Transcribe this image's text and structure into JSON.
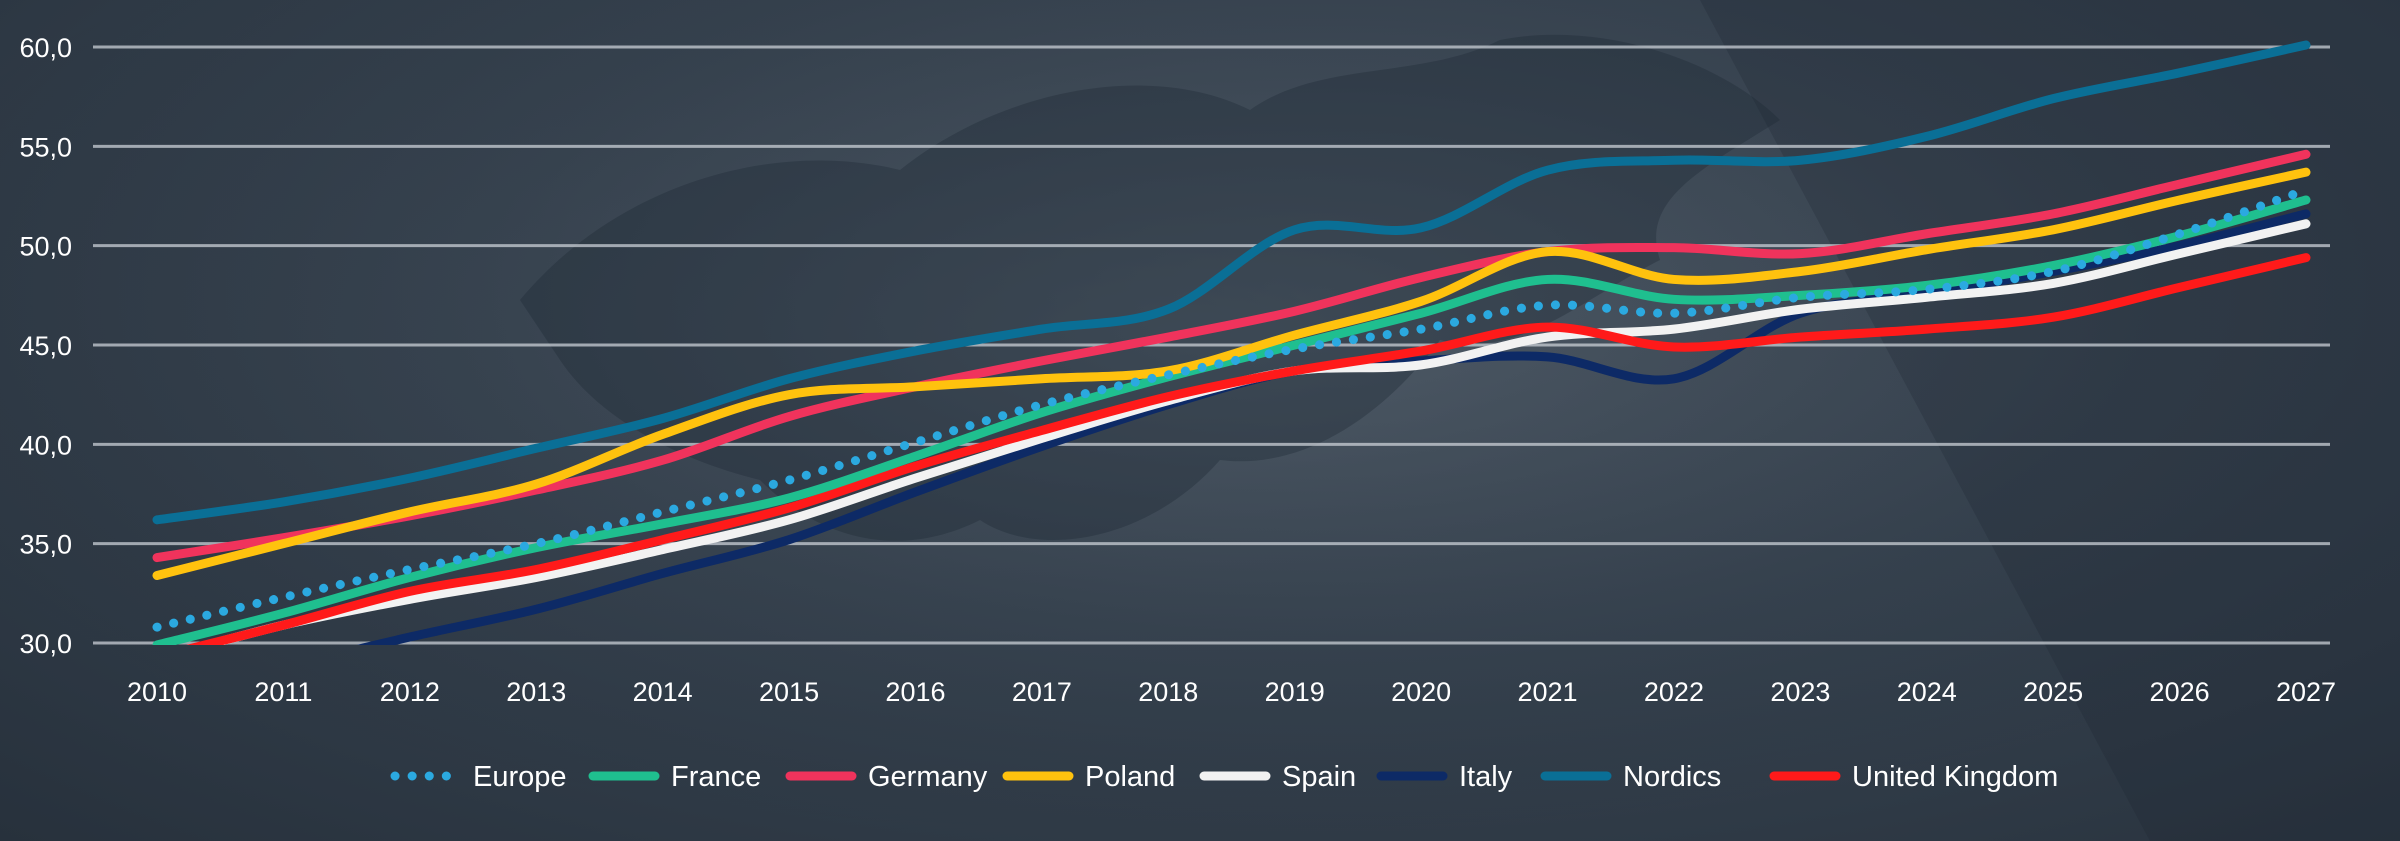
{
  "chart_data": {
    "type": "line",
    "title": "",
    "xlabel": "",
    "ylabel": "",
    "x": [
      "2010",
      "2011",
      "2012",
      "2013",
      "2014",
      "2015",
      "2016",
      "2017",
      "2018",
      "2019",
      "2020",
      "2021",
      "2022",
      "2023",
      "2024",
      "2025",
      "2026",
      "2027"
    ],
    "y_ticks": [
      "30,0",
      "35,0",
      "40,0",
      "45,0",
      "50,0",
      "55,0",
      "60,0"
    ],
    "ylim": [
      30,
      60
    ],
    "grid": true,
    "legend_position": "bottom",
    "series": [
      {
        "name": "Europe",
        "color": "#2ba9e0",
        "style": "dotted",
        "values": [
          30.8,
          32.3,
          33.7,
          35.0,
          36.6,
          38.2,
          40.1,
          42.0,
          43.5,
          44.8,
          45.8,
          47.0,
          46.6,
          47.4,
          47.8,
          48.7,
          50.6,
          52.8
        ]
      },
      {
        "name": "France",
        "color": "#1fbf8f",
        "style": "solid",
        "values": [
          29.9,
          31.5,
          33.3,
          34.8,
          36.0,
          37.3,
          39.4,
          41.6,
          43.4,
          45.0,
          46.6,
          48.3,
          47.3,
          47.5,
          48.0,
          49.0,
          50.5,
          52.3
        ]
      },
      {
        "name": "Germany",
        "color": "#f0335c",
        "style": "solid",
        "values": [
          34.3,
          35.3,
          36.4,
          37.7,
          39.2,
          41.4,
          42.9,
          44.2,
          45.4,
          46.7,
          48.4,
          49.7,
          49.9,
          49.6,
          50.6,
          51.6,
          53.1,
          54.6
        ]
      },
      {
        "name": "Poland",
        "color": "#ffc20e",
        "style": "solid",
        "values": [
          33.4,
          35.0,
          36.6,
          38.0,
          40.5,
          42.5,
          42.9,
          43.3,
          43.7,
          45.5,
          47.2,
          49.7,
          48.3,
          48.7,
          49.8,
          50.8,
          52.3,
          53.7
        ]
      },
      {
        "name": "Spain",
        "color": "#f2f2f2",
        "style": "solid",
        "values": [
          29.2,
          30.9,
          32.2,
          33.3,
          34.7,
          36.2,
          38.3,
          40.3,
          42.2,
          43.7,
          44.0,
          45.4,
          45.8,
          46.8,
          47.4,
          48.1,
          49.6,
          51.1
        ]
      },
      {
        "name": "Italy",
        "color": "#0d2a66",
        "style": "solid",
        "values": [
          27.5,
          28.8,
          30.3,
          31.7,
          33.5,
          35.2,
          37.6,
          39.9,
          42.0,
          43.7,
          44.2,
          44.4,
          43.3,
          46.6,
          47.6,
          48.7,
          50.0,
          51.6
        ]
      },
      {
        "name": "Nordics",
        "color": "#0a6f96",
        "style": "solid",
        "values": [
          36.2,
          37.1,
          38.3,
          39.8,
          41.3,
          43.3,
          44.7,
          45.8,
          46.8,
          50.8,
          50.9,
          53.8,
          54.3,
          54.3,
          55.5,
          57.4,
          58.7,
          60.1
        ]
      },
      {
        "name": "United Kingdom",
        "color": "#ff1a1a",
        "style": "solid",
        "values": [
          29.3,
          30.9,
          32.6,
          33.7,
          35.2,
          36.8,
          38.9,
          40.7,
          42.4,
          43.7,
          44.7,
          45.9,
          44.9,
          45.4,
          45.8,
          46.4,
          47.9,
          49.4
        ]
      }
    ]
  }
}
